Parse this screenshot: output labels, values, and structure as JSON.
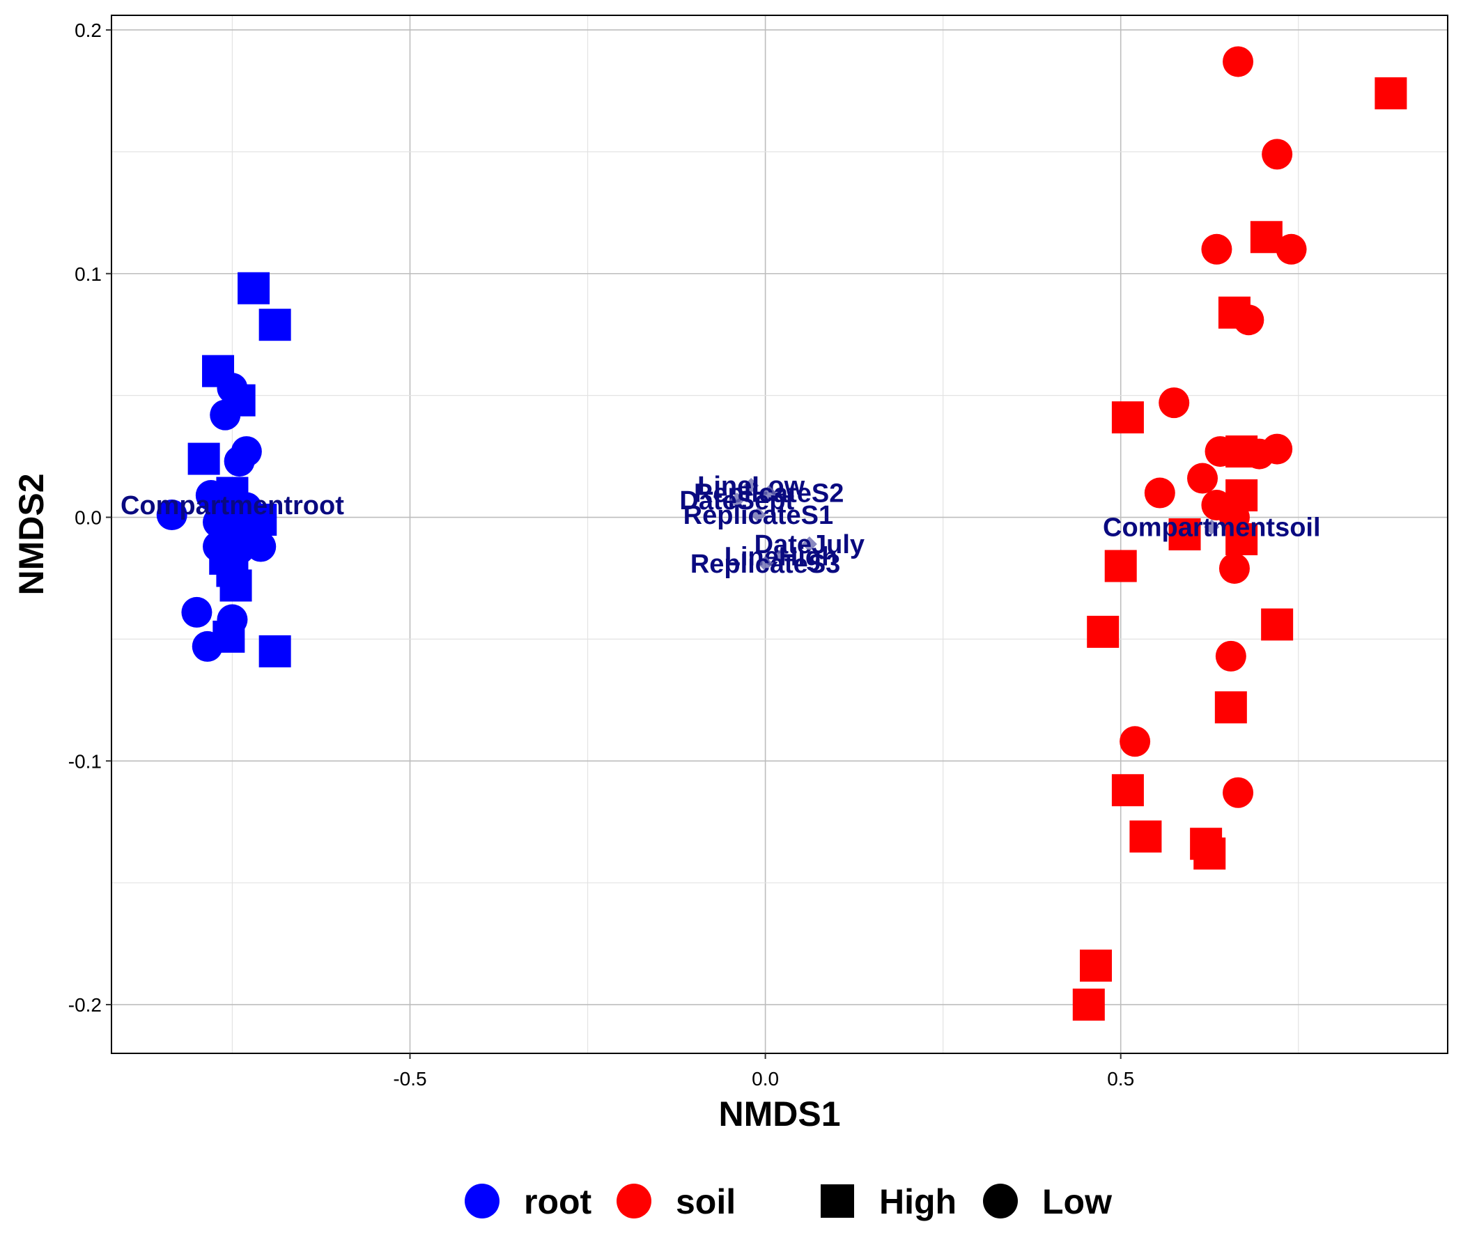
{
  "chart_data": {
    "type": "scatter",
    "xlabel": "NMDS1",
    "ylabel": "NMDS2",
    "xlim": [
      -0.92,
      0.96
    ],
    "ylim": [
      -0.22,
      0.206
    ],
    "x_ticks": [
      {
        "value": -0.5,
        "label": "-0.5"
      },
      {
        "value": 0.0,
        "label": "0.0"
      },
      {
        "value": 0.5,
        "label": "0.5"
      }
    ],
    "y_ticks": [
      {
        "value": 0.2,
        "label": "0.2"
      },
      {
        "value": 0.1,
        "label": "0.1"
      },
      {
        "value": 0.0,
        "label": "0.0"
      },
      {
        "value": -0.1,
        "label": "-0.1"
      },
      {
        "value": -0.2,
        "label": "-0.2"
      }
    ],
    "grid": true,
    "legend_position": "bottom",
    "legend": {
      "color": [
        {
          "label": "root",
          "color": "#0000ff"
        },
        {
          "label": "soil",
          "color": "#ff0000"
        }
      ],
      "shape": [
        {
          "label": "High",
          "shape": "square"
        },
        {
          "label": "Low",
          "shape": "circle"
        }
      ]
    },
    "colors": {
      "root": "#0000ff",
      "soil": "#ff0000",
      "vector_label": "#0a0a80",
      "vector_point": "#6b6bb0"
    },
    "points": [
      {
        "x": -0.72,
        "y": 0.094,
        "group": "root",
        "shape": "High"
      },
      {
        "x": -0.69,
        "y": 0.079,
        "group": "root",
        "shape": "High"
      },
      {
        "x": -0.77,
        "y": 0.06,
        "group": "root",
        "shape": "High"
      },
      {
        "x": -0.75,
        "y": 0.053,
        "group": "root",
        "shape": "Low"
      },
      {
        "x": -0.74,
        "y": 0.048,
        "group": "root",
        "shape": "High"
      },
      {
        "x": -0.76,
        "y": 0.042,
        "group": "root",
        "shape": "Low"
      },
      {
        "x": -0.73,
        "y": 0.027,
        "group": "root",
        "shape": "Low"
      },
      {
        "x": -0.74,
        "y": 0.023,
        "group": "root",
        "shape": "Low"
      },
      {
        "x": -0.79,
        "y": 0.024,
        "group": "root",
        "shape": "High"
      },
      {
        "x": -0.78,
        "y": 0.009,
        "group": "root",
        "shape": "Low"
      },
      {
        "x": -0.75,
        "y": 0.01,
        "group": "root",
        "shape": "High"
      },
      {
        "x": -0.76,
        "y": 0.005,
        "group": "root",
        "shape": "Low"
      },
      {
        "x": -0.73,
        "y": 0.004,
        "group": "root",
        "shape": "Low"
      },
      {
        "x": -0.835,
        "y": 0.001,
        "group": "root",
        "shape": "Low"
      },
      {
        "x": -0.77,
        "y": -0.002,
        "group": "root",
        "shape": "Low"
      },
      {
        "x": -0.74,
        "y": -0.004,
        "group": "root",
        "shape": "Low"
      },
      {
        "x": -0.71,
        "y": -0.001,
        "group": "root",
        "shape": "High"
      },
      {
        "x": -0.77,
        "y": -0.012,
        "group": "root",
        "shape": "Low"
      },
      {
        "x": -0.74,
        "y": -0.013,
        "group": "root",
        "shape": "Low"
      },
      {
        "x": -0.71,
        "y": -0.012,
        "group": "root",
        "shape": "Low"
      },
      {
        "x": -0.76,
        "y": -0.017,
        "group": "root",
        "shape": "High"
      },
      {
        "x": -0.75,
        "y": -0.022,
        "group": "root",
        "shape": "High"
      },
      {
        "x": -0.745,
        "y": -0.028,
        "group": "root",
        "shape": "High"
      },
      {
        "x": -0.8,
        "y": -0.039,
        "group": "root",
        "shape": "Low"
      },
      {
        "x": -0.75,
        "y": -0.042,
        "group": "root",
        "shape": "Low"
      },
      {
        "x": -0.755,
        "y": -0.049,
        "group": "root",
        "shape": "High"
      },
      {
        "x": -0.785,
        "y": -0.053,
        "group": "root",
        "shape": "Low"
      },
      {
        "x": -0.69,
        "y": -0.055,
        "group": "root",
        "shape": "High"
      },
      {
        "x": 0.665,
        "y": 0.187,
        "group": "soil",
        "shape": "Low"
      },
      {
        "x": 0.88,
        "y": 0.174,
        "group": "soil",
        "shape": "High"
      },
      {
        "x": 0.72,
        "y": 0.149,
        "group": "soil",
        "shape": "Low"
      },
      {
        "x": 0.705,
        "y": 0.115,
        "group": "soil",
        "shape": "High"
      },
      {
        "x": 0.635,
        "y": 0.11,
        "group": "soil",
        "shape": "Low"
      },
      {
        "x": 0.74,
        "y": 0.11,
        "group": "soil",
        "shape": "Low"
      },
      {
        "x": 0.66,
        "y": 0.084,
        "group": "soil",
        "shape": "High"
      },
      {
        "x": 0.68,
        "y": 0.081,
        "group": "soil",
        "shape": "Low"
      },
      {
        "x": 0.575,
        "y": 0.047,
        "group": "soil",
        "shape": "Low"
      },
      {
        "x": 0.51,
        "y": 0.041,
        "group": "soil",
        "shape": "High"
      },
      {
        "x": 0.64,
        "y": 0.027,
        "group": "soil",
        "shape": "Low"
      },
      {
        "x": 0.67,
        "y": 0.027,
        "group": "soil",
        "shape": "High"
      },
      {
        "x": 0.695,
        "y": 0.026,
        "group": "soil",
        "shape": "Low"
      },
      {
        "x": 0.72,
        "y": 0.028,
        "group": "soil",
        "shape": "Low"
      },
      {
        "x": 0.615,
        "y": 0.016,
        "group": "soil",
        "shape": "Low"
      },
      {
        "x": 0.555,
        "y": 0.01,
        "group": "soil",
        "shape": "Low"
      },
      {
        "x": 0.67,
        "y": 0.009,
        "group": "soil",
        "shape": "High"
      },
      {
        "x": 0.635,
        "y": 0.005,
        "group": "soil",
        "shape": "Low"
      },
      {
        "x": 0.66,
        "y": 0.0,
        "group": "soil",
        "shape": "Low"
      },
      {
        "x": 0.59,
        "y": -0.007,
        "group": "soil",
        "shape": "High"
      },
      {
        "x": 0.67,
        "y": -0.009,
        "group": "soil",
        "shape": "High"
      },
      {
        "x": 0.5,
        "y": -0.02,
        "group": "soil",
        "shape": "High"
      },
      {
        "x": 0.66,
        "y": -0.021,
        "group": "soil",
        "shape": "Low"
      },
      {
        "x": 0.475,
        "y": -0.047,
        "group": "soil",
        "shape": "High"
      },
      {
        "x": 0.72,
        "y": -0.044,
        "group": "soil",
        "shape": "High"
      },
      {
        "x": 0.655,
        "y": -0.057,
        "group": "soil",
        "shape": "Low"
      },
      {
        "x": 0.655,
        "y": -0.078,
        "group": "soil",
        "shape": "High"
      },
      {
        "x": 0.52,
        "y": -0.092,
        "group": "soil",
        "shape": "Low"
      },
      {
        "x": 0.51,
        "y": -0.112,
        "group": "soil",
        "shape": "High"
      },
      {
        "x": 0.665,
        "y": -0.113,
        "group": "soil",
        "shape": "Low"
      },
      {
        "x": 0.535,
        "y": -0.131,
        "group": "soil",
        "shape": "High"
      },
      {
        "x": 0.62,
        "y": -0.134,
        "group": "soil",
        "shape": "High"
      },
      {
        "x": 0.625,
        "y": -0.138,
        "group": "soil",
        "shape": "High"
      },
      {
        "x": 0.465,
        "y": -0.184,
        "group": "soil",
        "shape": "High"
      },
      {
        "x": 0.455,
        "y": -0.2,
        "group": "soil",
        "shape": "High"
      }
    ],
    "annotations": [
      {
        "label": "Compartmentroot",
        "x": -0.75,
        "y": 0.005,
        "marker": false
      },
      {
        "label": "Compartmentsoil",
        "x": 0.628,
        "y": -0.004,
        "marker": true
      },
      {
        "label": "LineLow",
        "x": -0.02,
        "y": 0.013,
        "marker": true
      },
      {
        "label": "ReplicateS2",
        "x": 0.005,
        "y": 0.01,
        "marker": true
      },
      {
        "label": "DateSept",
        "x": -0.04,
        "y": 0.007,
        "marker": true
      },
      {
        "label": "ReplicateS1",
        "x": -0.01,
        "y": 0.001,
        "marker": true
      },
      {
        "label": "DateJuly",
        "x": 0.062,
        "y": -0.011,
        "marker": true
      },
      {
        "label": "LineHigh",
        "x": 0.022,
        "y": -0.016,
        "marker": true
      },
      {
        "label": "ReplicateS3",
        "x": 0.0,
        "y": -0.019,
        "marker": true
      }
    ]
  }
}
